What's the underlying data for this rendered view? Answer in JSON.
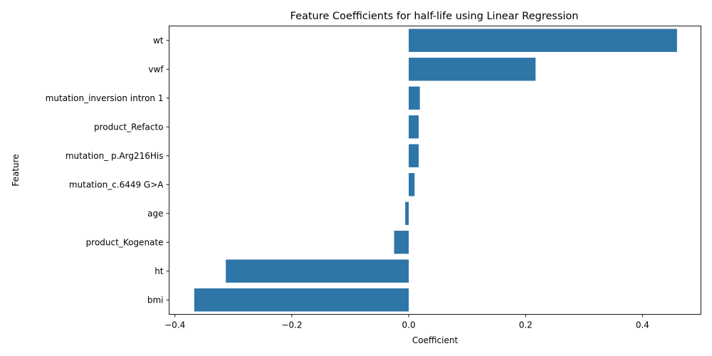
{
  "chart_data": {
    "type": "bar",
    "orientation": "horizontal",
    "title": "Feature Coefficients for half-life using Linear Regression",
    "xlabel": "Coefficient",
    "ylabel": "Feature",
    "categories": [
      "wt",
      "vwf",
      "mutation_inversion intron 1",
      "product_Refacto",
      "mutation_ p.Arg216His",
      "mutation_c.6449 G>A",
      "age",
      "product_Kogenate",
      "ht",
      "bmi"
    ],
    "values": [
      0.459,
      0.217,
      0.019,
      0.017,
      0.017,
      0.01,
      -0.006,
      -0.025,
      -0.313,
      -0.367
    ],
    "xlim": [
      -0.41,
      0.5
    ],
    "xticks": [
      -0.4,
      -0.2,
      0.0,
      0.2,
      0.4
    ],
    "xtick_labels": [
      "−0.4",
      "−0.2",
      "0.0",
      "0.2",
      "0.4"
    ],
    "bar_color": "#2e75a8",
    "grid": false,
    "legend": false
  }
}
